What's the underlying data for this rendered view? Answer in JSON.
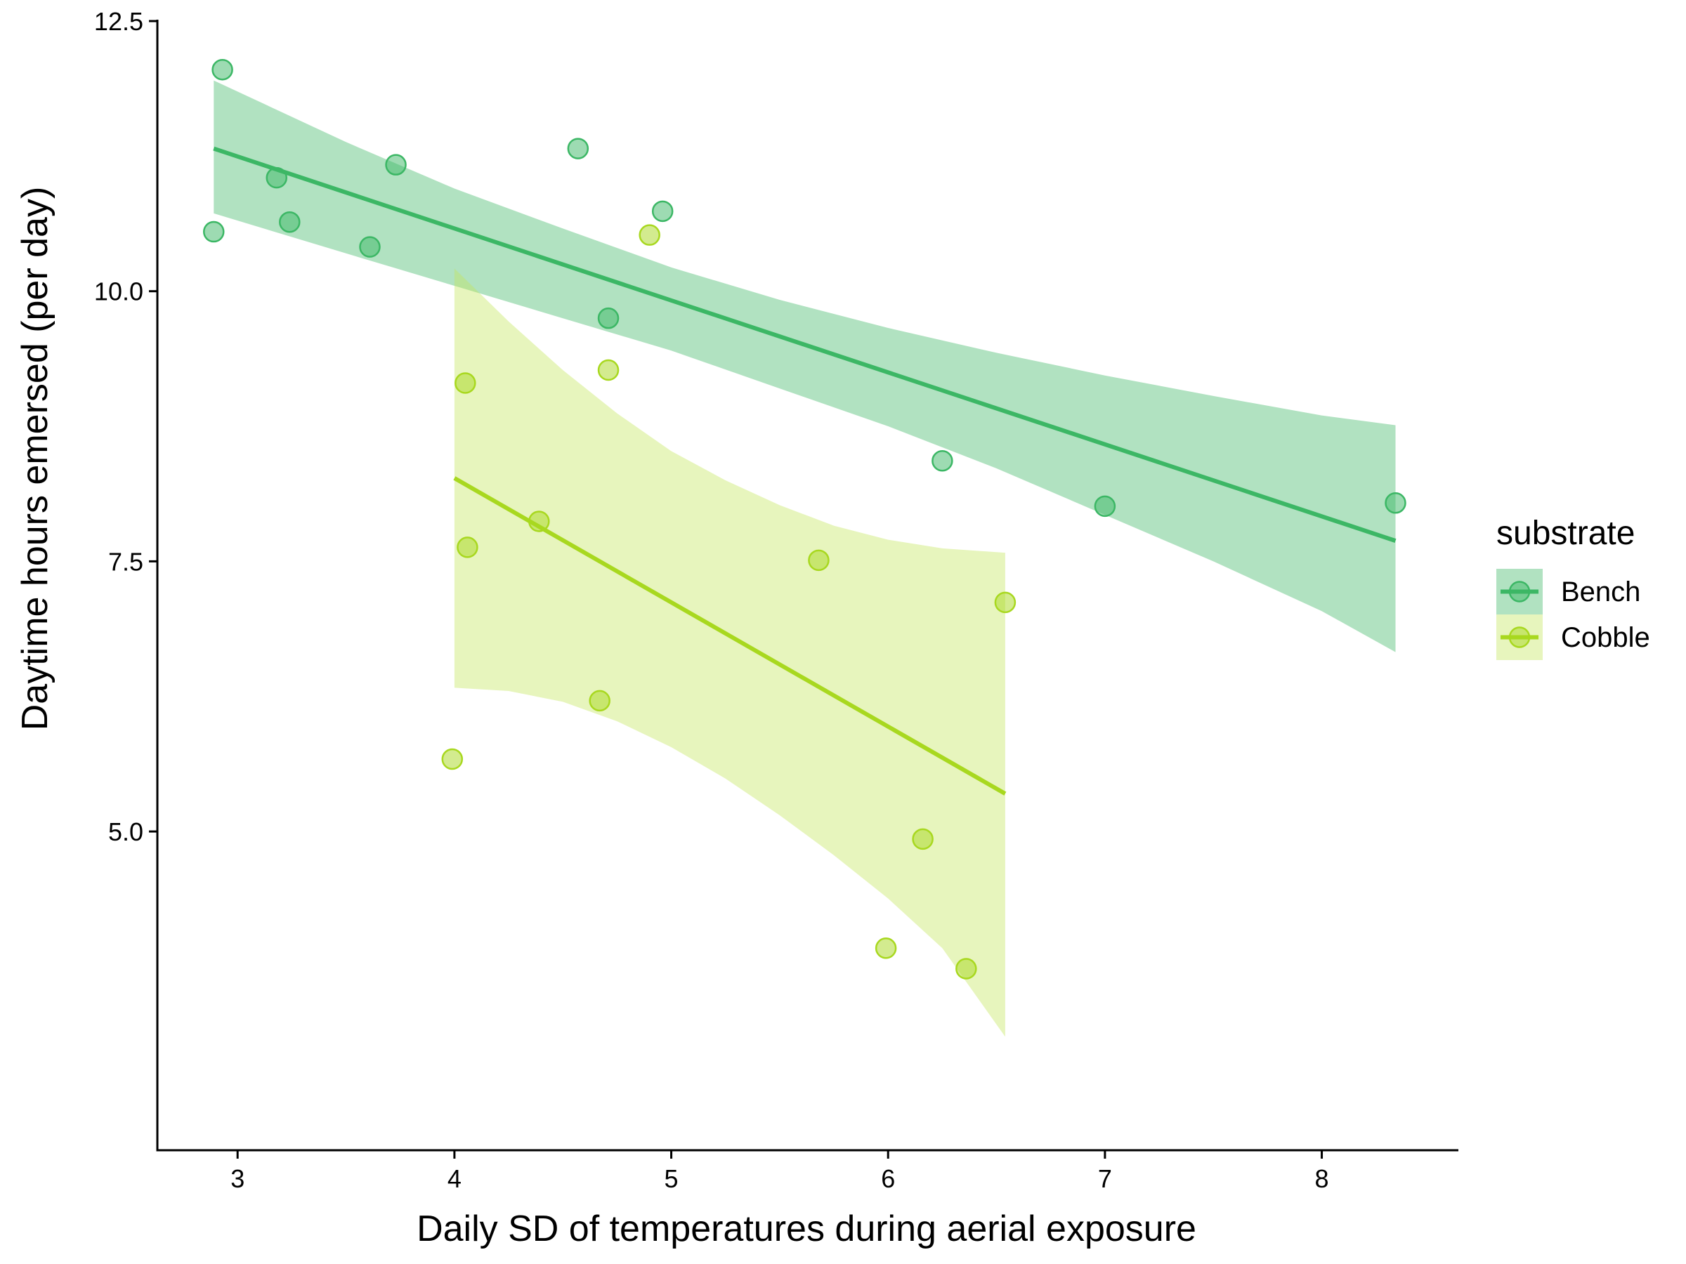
{
  "chart_data": {
    "type": "scatter",
    "title": "",
    "xlabel": "Daily SD of temperatures during aerial exposure",
    "ylabel": "Daytime hours emersed (per day)",
    "xlim": [
      2.63,
      8.63
    ],
    "ylim": [
      2.05,
      12.5
    ],
    "xticks": [
      3,
      4,
      5,
      6,
      7,
      8
    ],
    "xtick_labels": [
      "3",
      "4",
      "5",
      "6",
      "7",
      "8"
    ],
    "yticks": [
      5.0,
      7.5,
      10.0,
      12.5
    ],
    "ytick_labels": [
      "5.0",
      "7.5",
      "10.0",
      "12.5"
    ],
    "grid": false,
    "legend": {
      "title": "substrate",
      "placement": "right"
    },
    "series": [
      {
        "name": "Bench",
        "color": "#3cb765",
        "fill_color": "#3cb765",
        "points": [
          {
            "x": 2.93,
            "y": 12.05
          },
          {
            "x": 2.89,
            "y": 10.55
          },
          {
            "x": 3.18,
            "y": 11.05
          },
          {
            "x": 3.24,
            "y": 10.64
          },
          {
            "x": 3.61,
            "y": 10.41
          },
          {
            "x": 3.73,
            "y": 11.17
          },
          {
            "x": 4.57,
            "y": 11.32
          },
          {
            "x": 4.71,
            "y": 9.75
          },
          {
            "x": 4.96,
            "y": 10.74
          },
          {
            "x": 6.25,
            "y": 8.43
          },
          {
            "x": 7.0,
            "y": 8.01
          },
          {
            "x": 8.34,
            "y": 8.04
          }
        ],
        "fit": {
          "x": [
            2.89,
            8.34
          ],
          "y": [
            11.32,
            7.69
          ]
        },
        "ribbon": [
          {
            "x": 2.89,
            "lower": 10.72,
            "upper": 11.95
          },
          {
            "x": 3.5,
            "lower": 10.35,
            "upper": 11.38
          },
          {
            "x": 4.0,
            "lower": 10.05,
            "upper": 10.95
          },
          {
            "x": 4.5,
            "lower": 9.75,
            "upper": 10.58
          },
          {
            "x": 5.0,
            "lower": 9.45,
            "upper": 10.22
          },
          {
            "x": 5.5,
            "lower": 9.1,
            "upper": 9.92
          },
          {
            "x": 6.0,
            "lower": 8.75,
            "upper": 9.66
          },
          {
            "x": 6.5,
            "lower": 8.36,
            "upper": 9.43
          },
          {
            "x": 7.0,
            "lower": 7.93,
            "upper": 9.22
          },
          {
            "x": 7.5,
            "lower": 7.5,
            "upper": 9.03
          },
          {
            "x": 8.0,
            "lower": 7.04,
            "upper": 8.85
          },
          {
            "x": 8.34,
            "lower": 6.66,
            "upper": 8.76
          }
        ]
      },
      {
        "name": "Cobble",
        "color": "#a8d81f",
        "fill_color": "#c3e55a",
        "points": [
          {
            "x": 4.9,
            "y": 10.52
          },
          {
            "x": 4.05,
            "y": 9.15
          },
          {
            "x": 4.71,
            "y": 9.27
          },
          {
            "x": 4.39,
            "y": 7.87
          },
          {
            "x": 4.06,
            "y": 7.63
          },
          {
            "x": 5.68,
            "y": 7.51
          },
          {
            "x": 6.54,
            "y": 7.12
          },
          {
            "x": 4.67,
            "y": 6.21
          },
          {
            "x": 3.99,
            "y": 5.67
          },
          {
            "x": 6.16,
            "y": 4.93
          },
          {
            "x": 5.99,
            "y": 3.92
          },
          {
            "x": 6.36,
            "y": 3.73
          }
        ],
        "fit": {
          "x": [
            4.0,
            6.54
          ],
          "y": [
            8.27,
            5.35
          ]
        },
        "ribbon": [
          {
            "x": 4.0,
            "lower": 6.33,
            "upper": 10.21
          },
          {
            "x": 4.25,
            "lower": 6.3,
            "upper": 9.72
          },
          {
            "x": 4.5,
            "lower": 6.2,
            "upper": 9.27
          },
          {
            "x": 4.75,
            "lower": 6.02,
            "upper": 8.87
          },
          {
            "x": 5.0,
            "lower": 5.78,
            "upper": 8.52
          },
          {
            "x": 5.25,
            "lower": 5.49,
            "upper": 8.25
          },
          {
            "x": 5.5,
            "lower": 5.15,
            "upper": 8.02
          },
          {
            "x": 5.75,
            "lower": 4.78,
            "upper": 7.83
          },
          {
            "x": 6.0,
            "lower": 4.38,
            "upper": 7.7
          },
          {
            "x": 6.25,
            "lower": 3.92,
            "upper": 7.62
          },
          {
            "x": 6.54,
            "lower": 3.1,
            "upper": 7.58
          }
        ]
      }
    ]
  }
}
